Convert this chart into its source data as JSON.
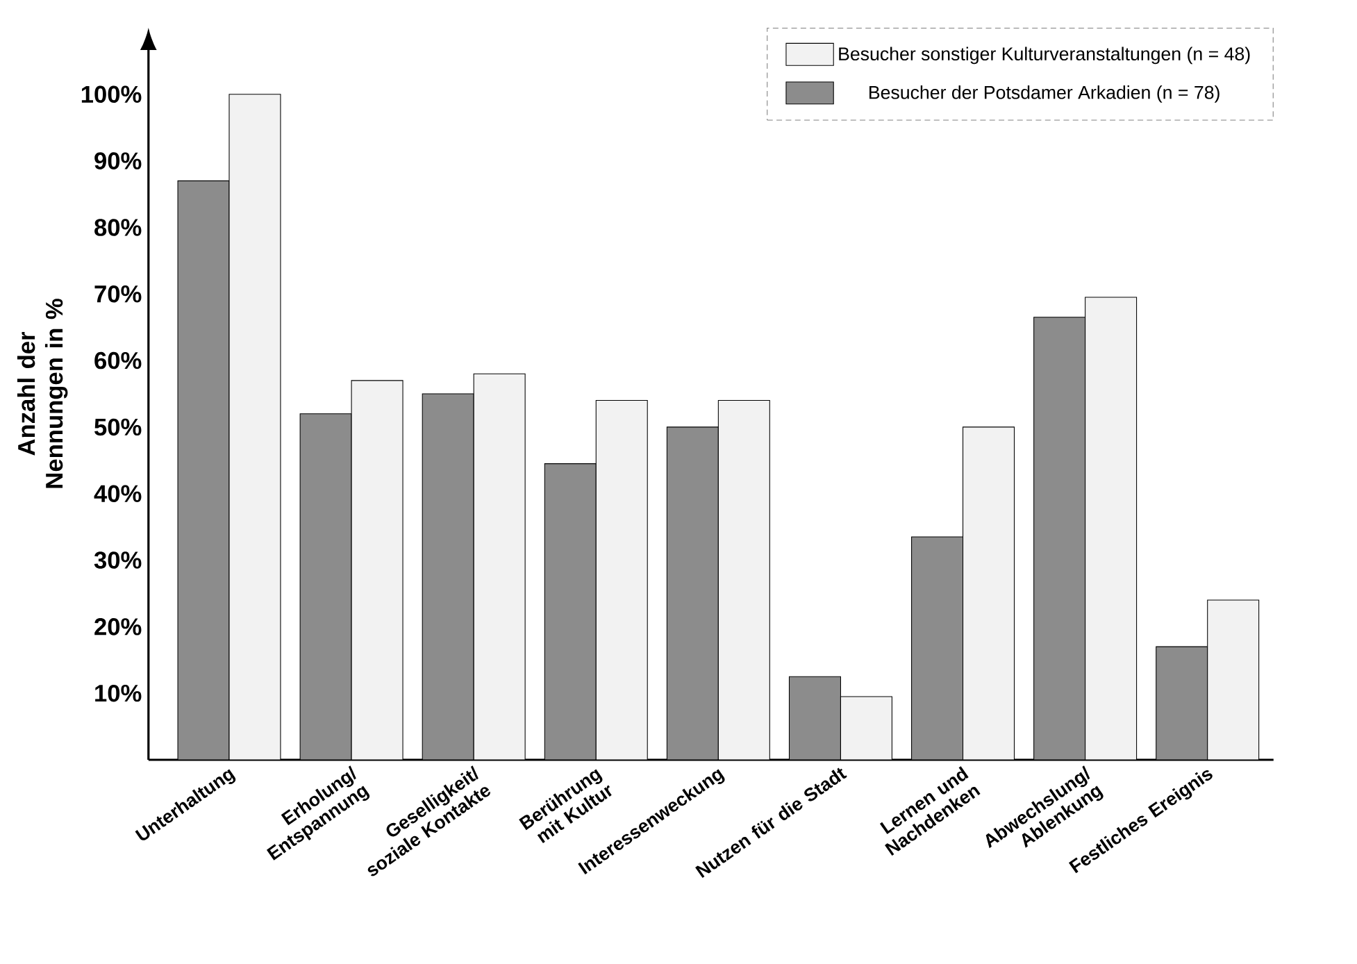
{
  "chart_data": {
    "type": "bar",
    "ylabel": "Anzahl der Nennungen in %",
    "categories": [
      "Unterhaltung",
      "Erholung/ Entspannung",
      "Geselligkeit/ soziale Kontakte",
      "Berührung mit Kultur",
      "Interessenweckung",
      "Nutzen für die Stadt",
      "Lernen und Nachdenken",
      "Abwechslung/ Ablenkung",
      "Festliches Ereignis"
    ],
    "series": [
      {
        "name": "Besucher der Potsdamer Arkadien (n = 78)",
        "color": "#8c8c8c",
        "values": [
          87,
          52,
          55,
          44.5,
          50,
          12.5,
          33.5,
          66.5,
          17
        ]
      },
      {
        "name": "Besucher sonstiger Kulturveranstaltungen (n = 48)",
        "color": "#f2f2f2",
        "values": [
          100,
          57,
          58,
          54,
          54,
          9.5,
          50,
          69.5,
          24
        ]
      }
    ],
    "ylim": [
      0,
      110
    ],
    "yticks": [
      {
        "value": 10,
        "label": "10%"
      },
      {
        "value": 20,
        "label": "20%"
      },
      {
        "value": 30,
        "label": "30%"
      },
      {
        "value": 40,
        "label": "40%"
      },
      {
        "value": 50,
        "label": "50%"
      },
      {
        "value": 60,
        "label": "60%"
      },
      {
        "value": 70,
        "label": "70%"
      },
      {
        "value": 80,
        "label": "80%"
      },
      {
        "value": 90,
        "label": "90%"
      },
      {
        "value": 100,
        "label": "100%"
      }
    ],
    "legend": "top right"
  }
}
